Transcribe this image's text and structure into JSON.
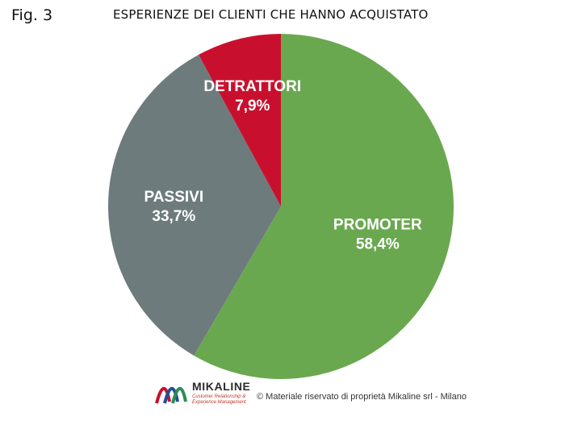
{
  "figure": {
    "label": "Fig. 3"
  },
  "logo": {
    "name": "MIKALINE",
    "tagline": "Customer Relationship & Experience Management"
  },
  "footer": {
    "copyright": "© Materiale riservato di proprietà Mikaline srl - Milano"
  },
  "chart_data": {
    "type": "pie",
    "title": "ESPERIENZE DEI CLIENTI CHE HANNO ACQUISTATO",
    "slices": [
      {
        "name": "PROMOTER",
        "value": 58.4,
        "label": "58,4%",
        "color": "#6aa84f"
      },
      {
        "name": "PASSIVI",
        "value": 33.7,
        "label": "33,7%",
        "color": "#6e7b7c"
      },
      {
        "name": "DETRATTORI",
        "value": 7.9,
        "label": "7,9%",
        "color": "#c8102e"
      }
    ],
    "start_angle": "top",
    "direction": "clockwise"
  }
}
